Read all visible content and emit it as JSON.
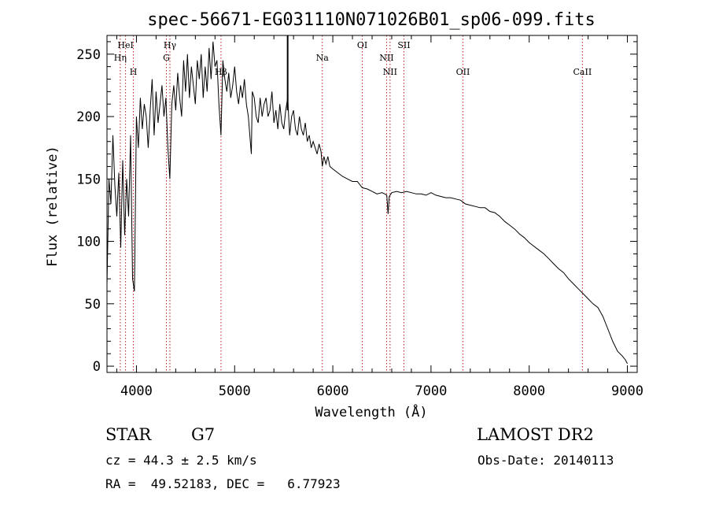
{
  "chart_data": {
    "type": "line",
    "title": "spec-56671-EG031110N071026B01_sp06-099.fits",
    "xlabel": "Wavelength (Å)",
    "ylabel": "Flux (relative)",
    "xlim": [
      3700,
      9100
    ],
    "ylim": [
      -5,
      265
    ],
    "xticks": [
      4000,
      5000,
      6000,
      7000,
      8000,
      9000
    ],
    "yticks": [
      0,
      50,
      100,
      150,
      200,
      250
    ],
    "series": [
      {
        "x": [
          3700,
          3720,
          3740,
          3760,
          3780,
          3800,
          3820,
          3840,
          3860,
          3880,
          3900,
          3920,
          3940,
          3960,
          3980,
          4000,
          4020,
          4040,
          4060,
          4080,
          4100,
          4120,
          4140,
          4160,
          4180,
          4200,
          4220,
          4240,
          4260,
          4280,
          4300,
          4320,
          4340,
          4360,
          4380,
          4400,
          4420,
          4440,
          4460,
          4480,
          4500,
          4520,
          4540,
          4560,
          4580,
          4600,
          4620,
          4640,
          4660,
          4680,
          4700,
          4720,
          4740,
          4760,
          4780,
          4800,
          4820,
          4840,
          4861,
          4880,
          4900,
          4920,
          4940,
          4960,
          4980,
          5000,
          5020,
          5040,
          5060,
          5080,
          5100,
          5120,
          5140,
          5160,
          5170,
          5180,
          5200,
          5220,
          5240,
          5260,
          5280,
          5300,
          5320,
          5340,
          5360,
          5380,
          5400,
          5420,
          5440,
          5460,
          5480,
          5500,
          5520,
          5540,
          5560,
          5580,
          5600,
          5620,
          5640,
          5660,
          5680,
          5700,
          5720,
          5740,
          5760,
          5780,
          5800,
          5820,
          5840,
          5860,
          5880,
          5893,
          5910,
          5930,
          5950,
          5970,
          6000,
          6050,
          6100,
          6150,
          6200,
          6250,
          6300,
          6350,
          6400,
          6450,
          6500,
          6530,
          6550,
          6563,
          6575,
          6600,
          6650,
          6700,
          6750,
          6800,
          6850,
          6900,
          6950,
          7000,
          7050,
          7100,
          7150,
          7200,
          7250,
          7300,
          7350,
          7400,
          7450,
          7500,
          7550,
          7600,
          7650,
          7700,
          7750,
          7800,
          7850,
          7900,
          7950,
          8000,
          8050,
          8100,
          8150,
          8200,
          8250,
          8300,
          8350,
          8400,
          8450,
          8500,
          8550,
          8600,
          8650,
          8700,
          8750,
          8800,
          8850,
          8900,
          8950,
          8980,
          9000
        ],
        "values": [
          65,
          150,
          130,
          185,
          145,
          120,
          155,
          95,
          165,
          105,
          150,
          120,
          185,
          70,
          60,
          200,
          175,
          215,
          190,
          210,
          200,
          175,
          205,
          230,
          185,
          220,
          195,
          210,
          225,
          200,
          215,
          175,
          150,
          210,
          225,
          205,
          235,
          215,
          200,
          245,
          220,
          250,
          215,
          240,
          225,
          210,
          245,
          230,
          250,
          215,
          240,
          220,
          255,
          230,
          260,
          240,
          245,
          210,
          185,
          245,
          230,
          220,
          235,
          215,
          225,
          240,
          220,
          210,
          225,
          215,
          230,
          210,
          200,
          180,
          170,
          220,
          215,
          200,
          195,
          215,
          200,
          210,
          215,
          200,
          205,
          220,
          195,
          205,
          190,
          210,
          195,
          190,
          205,
          215,
          185,
          200,
          205,
          190,
          185,
          200,
          190,
          185,
          195,
          180,
          185,
          175,
          180,
          175,
          170,
          178,
          172,
          160,
          168,
          162,
          168,
          160,
          158,
          155,
          152,
          150,
          148,
          148,
          143,
          142,
          140,
          138,
          139,
          138,
          137,
          122,
          136,
          139,
          140,
          139,
          140,
          139,
          138,
          138,
          137,
          139,
          137,
          136,
          135,
          135,
          134,
          133,
          130,
          129,
          128,
          127,
          127,
          124,
          123,
          120,
          116,
          113,
          110,
          106,
          103,
          99,
          96,
          93,
          90,
          86,
          82,
          78,
          75,
          70,
          66,
          62,
          58,
          54,
          50,
          47,
          40,
          30,
          20,
          12,
          8,
          5,
          2
        ]
      }
    ],
    "lines": [
      {
        "label": "HeI",
        "x": 3889
      },
      {
        "label": "Hη",
        "x": 3835
      },
      {
        "label": "H",
        "x": 3969
      },
      {
        "label": "Hγ",
        "x": 4341
      },
      {
        "label": "G",
        "x": 4305
      },
      {
        "label": "Hβ",
        "x": 4861
      },
      {
        "label": "Na",
        "x": 5893
      },
      {
        "label": "OI",
        "x": 6300
      },
      {
        "label": "NII",
        "x": 6548
      },
      {
        "label": "NII",
        "x": 6583
      },
      {
        "label": "OII",
        "x": 7325
      },
      {
        "label": "SII",
        "x": 6724
      },
      {
        "label": "CaII",
        "x": 8542
      }
    ]
  },
  "info": {
    "object_type": "STAR",
    "subclass": "G7",
    "survey": "LAMOST DR2",
    "cz": "cz = 44.3 ± 2.5 km/s",
    "obs_date": "Obs-Date: 20140113",
    "radec": "RA =  49.52183, DEC =   6.77923"
  }
}
